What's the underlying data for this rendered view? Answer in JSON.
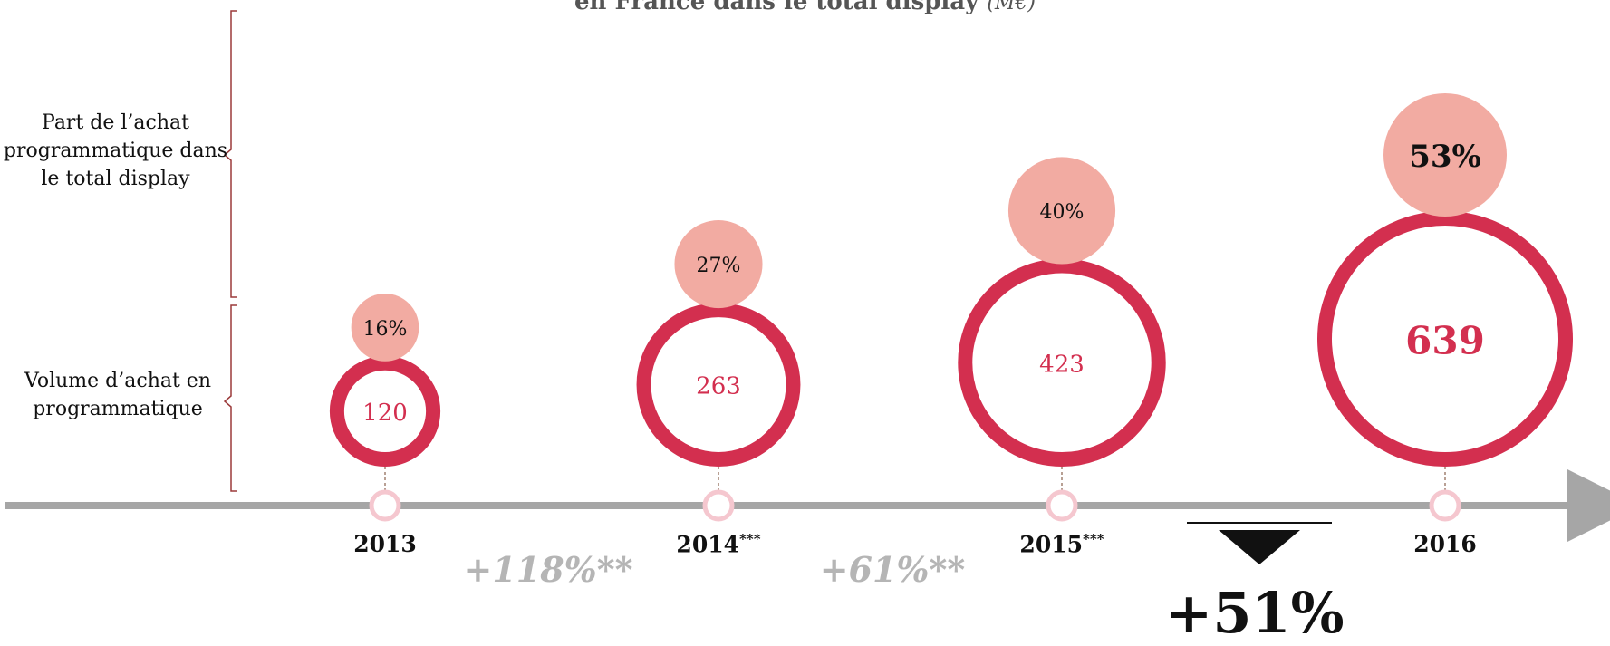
{
  "title_partial": "en France dans le total display",
  "title_unit": "(M€)",
  "row_labels": {
    "share": "Part de l’achat programmatique dans le total display",
    "volume": "Volume d’achat en programmatique"
  },
  "growth_labels": [
    "+118%**",
    "+61%**"
  ],
  "total_growth_label": "+51%",
  "colors": {
    "ring": "#d32f4f",
    "share_bubble": "#f2aba2",
    "axis": "#a6a6a6",
    "marker": "#f5c7cf",
    "growth_text": "#b5b5b5",
    "bracket": "#9b3a3a"
  },
  "chart_data": {
    "type": "bubble",
    "title": "en France dans le total display (M€)",
    "x": [
      "2013",
      "2014",
      "2015",
      "2016"
    ],
    "year_suffix": [
      "",
      "***",
      "***",
      ""
    ],
    "series": [
      {
        "name": "Volume d’achat en programmatique",
        "values": [
          120,
          263,
          423,
          639
        ],
        "labels": [
          "120",
          "263",
          "423",
          "639"
        ]
      },
      {
        "name": "Part de l’achat programmatique dans le total display",
        "values": [
          16,
          27,
          40,
          53
        ],
        "labels": [
          "16%",
          "27%",
          "40%",
          "53%"
        ]
      }
    ],
    "growth": [
      "+118%**",
      "+61%**",
      "+51%"
    ],
    "legend": "left",
    "grid": false
  }
}
